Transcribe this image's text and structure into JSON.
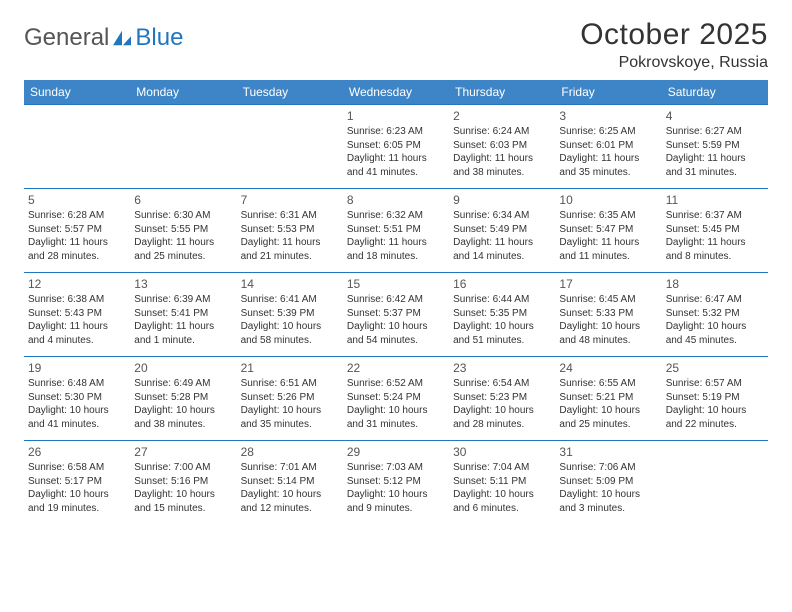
{
  "logo": {
    "general": "General",
    "blue": "Blue"
  },
  "title": "October 2025",
  "location": "Pokrovskoye, Russia",
  "colors": {
    "header_bg": "#3d85c6",
    "header_text": "#ffffff",
    "border": "#2176c0",
    "text": "#333333",
    "logo_gray": "#555555",
    "logo_blue": "#2176c0",
    "background": "#ffffff"
  },
  "daysOfWeek": [
    "Sunday",
    "Monday",
    "Tuesday",
    "Wednesday",
    "Thursday",
    "Friday",
    "Saturday"
  ],
  "weeks": [
    [
      {
        "n": "",
        "sr": "",
        "ss": "",
        "dl": ""
      },
      {
        "n": "",
        "sr": "",
        "ss": "",
        "dl": ""
      },
      {
        "n": "",
        "sr": "",
        "ss": "",
        "dl": ""
      },
      {
        "n": "1",
        "sr": "Sunrise: 6:23 AM",
        "ss": "Sunset: 6:05 PM",
        "dl": "Daylight: 11 hours and 41 minutes."
      },
      {
        "n": "2",
        "sr": "Sunrise: 6:24 AM",
        "ss": "Sunset: 6:03 PM",
        "dl": "Daylight: 11 hours and 38 minutes."
      },
      {
        "n": "3",
        "sr": "Sunrise: 6:25 AM",
        "ss": "Sunset: 6:01 PM",
        "dl": "Daylight: 11 hours and 35 minutes."
      },
      {
        "n": "4",
        "sr": "Sunrise: 6:27 AM",
        "ss": "Sunset: 5:59 PM",
        "dl": "Daylight: 11 hours and 31 minutes."
      }
    ],
    [
      {
        "n": "5",
        "sr": "Sunrise: 6:28 AM",
        "ss": "Sunset: 5:57 PM",
        "dl": "Daylight: 11 hours and 28 minutes."
      },
      {
        "n": "6",
        "sr": "Sunrise: 6:30 AM",
        "ss": "Sunset: 5:55 PM",
        "dl": "Daylight: 11 hours and 25 minutes."
      },
      {
        "n": "7",
        "sr": "Sunrise: 6:31 AM",
        "ss": "Sunset: 5:53 PM",
        "dl": "Daylight: 11 hours and 21 minutes."
      },
      {
        "n": "8",
        "sr": "Sunrise: 6:32 AM",
        "ss": "Sunset: 5:51 PM",
        "dl": "Daylight: 11 hours and 18 minutes."
      },
      {
        "n": "9",
        "sr": "Sunrise: 6:34 AM",
        "ss": "Sunset: 5:49 PM",
        "dl": "Daylight: 11 hours and 14 minutes."
      },
      {
        "n": "10",
        "sr": "Sunrise: 6:35 AM",
        "ss": "Sunset: 5:47 PM",
        "dl": "Daylight: 11 hours and 11 minutes."
      },
      {
        "n": "11",
        "sr": "Sunrise: 6:37 AM",
        "ss": "Sunset: 5:45 PM",
        "dl": "Daylight: 11 hours and 8 minutes."
      }
    ],
    [
      {
        "n": "12",
        "sr": "Sunrise: 6:38 AM",
        "ss": "Sunset: 5:43 PM",
        "dl": "Daylight: 11 hours and 4 minutes."
      },
      {
        "n": "13",
        "sr": "Sunrise: 6:39 AM",
        "ss": "Sunset: 5:41 PM",
        "dl": "Daylight: 11 hours and 1 minute."
      },
      {
        "n": "14",
        "sr": "Sunrise: 6:41 AM",
        "ss": "Sunset: 5:39 PM",
        "dl": "Daylight: 10 hours and 58 minutes."
      },
      {
        "n": "15",
        "sr": "Sunrise: 6:42 AM",
        "ss": "Sunset: 5:37 PM",
        "dl": "Daylight: 10 hours and 54 minutes."
      },
      {
        "n": "16",
        "sr": "Sunrise: 6:44 AM",
        "ss": "Sunset: 5:35 PM",
        "dl": "Daylight: 10 hours and 51 minutes."
      },
      {
        "n": "17",
        "sr": "Sunrise: 6:45 AM",
        "ss": "Sunset: 5:33 PM",
        "dl": "Daylight: 10 hours and 48 minutes."
      },
      {
        "n": "18",
        "sr": "Sunrise: 6:47 AM",
        "ss": "Sunset: 5:32 PM",
        "dl": "Daylight: 10 hours and 45 minutes."
      }
    ],
    [
      {
        "n": "19",
        "sr": "Sunrise: 6:48 AM",
        "ss": "Sunset: 5:30 PM",
        "dl": "Daylight: 10 hours and 41 minutes."
      },
      {
        "n": "20",
        "sr": "Sunrise: 6:49 AM",
        "ss": "Sunset: 5:28 PM",
        "dl": "Daylight: 10 hours and 38 minutes."
      },
      {
        "n": "21",
        "sr": "Sunrise: 6:51 AM",
        "ss": "Sunset: 5:26 PM",
        "dl": "Daylight: 10 hours and 35 minutes."
      },
      {
        "n": "22",
        "sr": "Sunrise: 6:52 AM",
        "ss": "Sunset: 5:24 PM",
        "dl": "Daylight: 10 hours and 31 minutes."
      },
      {
        "n": "23",
        "sr": "Sunrise: 6:54 AM",
        "ss": "Sunset: 5:23 PM",
        "dl": "Daylight: 10 hours and 28 minutes."
      },
      {
        "n": "24",
        "sr": "Sunrise: 6:55 AM",
        "ss": "Sunset: 5:21 PM",
        "dl": "Daylight: 10 hours and 25 minutes."
      },
      {
        "n": "25",
        "sr": "Sunrise: 6:57 AM",
        "ss": "Sunset: 5:19 PM",
        "dl": "Daylight: 10 hours and 22 minutes."
      }
    ],
    [
      {
        "n": "26",
        "sr": "Sunrise: 6:58 AM",
        "ss": "Sunset: 5:17 PM",
        "dl": "Daylight: 10 hours and 19 minutes."
      },
      {
        "n": "27",
        "sr": "Sunrise: 7:00 AM",
        "ss": "Sunset: 5:16 PM",
        "dl": "Daylight: 10 hours and 15 minutes."
      },
      {
        "n": "28",
        "sr": "Sunrise: 7:01 AM",
        "ss": "Sunset: 5:14 PM",
        "dl": "Daylight: 10 hours and 12 minutes."
      },
      {
        "n": "29",
        "sr": "Sunrise: 7:03 AM",
        "ss": "Sunset: 5:12 PM",
        "dl": "Daylight: 10 hours and 9 minutes."
      },
      {
        "n": "30",
        "sr": "Sunrise: 7:04 AM",
        "ss": "Sunset: 5:11 PM",
        "dl": "Daylight: 10 hours and 6 minutes."
      },
      {
        "n": "31",
        "sr": "Sunrise: 7:06 AM",
        "ss": "Sunset: 5:09 PM",
        "dl": "Daylight: 10 hours and 3 minutes."
      },
      {
        "n": "",
        "sr": "",
        "ss": "",
        "dl": ""
      }
    ]
  ]
}
